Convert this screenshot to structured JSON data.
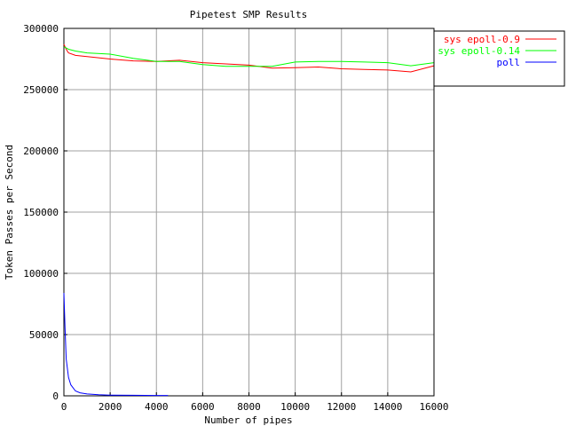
{
  "chart_data": {
    "type": "line",
    "title": "Pipetest SMP Results",
    "xlabel": "Number of pipes",
    "ylabel": "Token Passes per Second",
    "xlim": [
      0,
      16000
    ],
    "ylim": [
      0,
      300000
    ],
    "x_ticks": [
      0,
      2000,
      4000,
      6000,
      8000,
      10000,
      12000,
      14000,
      16000
    ],
    "y_ticks": [
      0,
      50000,
      100000,
      150000,
      200000,
      250000,
      300000
    ],
    "x_tick_labels": [
      "0",
      "2000",
      "4000",
      "6000",
      "8000",
      "10000",
      "12000",
      "14000",
      "16000"
    ],
    "y_tick_labels": [
      "0",
      "50000",
      "100000",
      "150000",
      "200000",
      "250000",
      "300000"
    ],
    "grid": true,
    "legend_position": "top-right",
    "series": [
      {
        "name": "sys epoll-0.9",
        "color": "#ff0000",
        "x": [
          0,
          100,
          200,
          500,
          1000,
          2000,
          3000,
          4000,
          5000,
          6000,
          7000,
          8000,
          9000,
          10000,
          11000,
          12000,
          13000,
          14000,
          15000,
          16000
        ],
        "y": [
          287000,
          283000,
          280000,
          278000,
          277000,
          275000,
          273500,
          273000,
          274000,
          272000,
          271000,
          270000,
          267500,
          268000,
          268500,
          267000,
          266500,
          266000,
          264500,
          269500
        ]
      },
      {
        "name": "sys epoll-0.14",
        "color": "#00ff00",
        "x": [
          0,
          100,
          200,
          500,
          1000,
          2000,
          3000,
          4000,
          5000,
          6000,
          7000,
          8000,
          9000,
          10000,
          11000,
          12000,
          13000,
          14000,
          15000,
          16000
        ],
        "y": [
          285000,
          284000,
          283000,
          281500,
          280000,
          279000,
          275500,
          273000,
          273000,
          270500,
          269000,
          269000,
          269000,
          272500,
          273000,
          273000,
          272500,
          272000,
          269500,
          272000
        ]
      },
      {
        "name": "poll",
        "color": "#0000ff",
        "x": [
          0,
          50,
          100,
          200,
          300,
          500,
          700,
          1000,
          1500,
          2000,
          3000,
          4000,
          4500
        ],
        "y": [
          84000,
          55000,
          30000,
          15000,
          9000,
          4000,
          2500,
          1500,
          900,
          600,
          400,
          300,
          300
        ]
      }
    ]
  }
}
